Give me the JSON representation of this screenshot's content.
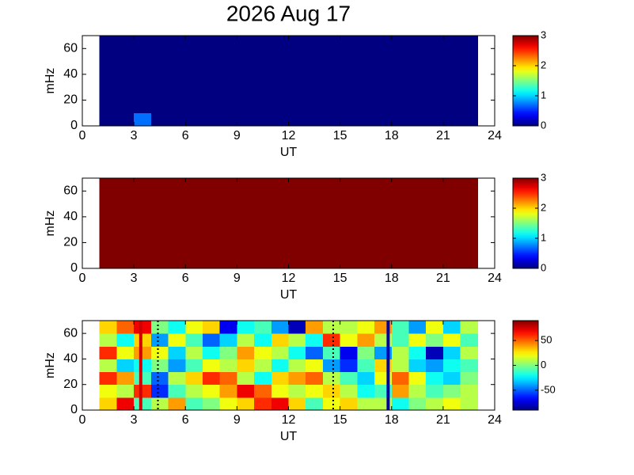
{
  "chart_data": [
    {
      "type": "heatmap",
      "title": "2026 Aug 17",
      "xlabel": "UT",
      "ylabel": "mHz",
      "xlim": [
        0,
        24
      ],
      "xticks": [
        0,
        3,
        6,
        9,
        12,
        15,
        18,
        21,
        24
      ],
      "ylim": [
        0,
        70
      ],
      "yticks": [
        0,
        20,
        40,
        60
      ],
      "x": [
        1.5,
        2.5,
        3.5,
        4.5,
        5.5,
        6.5,
        7.5,
        8.5,
        9.5,
        10.5,
        11.5,
        12.5,
        13.5,
        14.5,
        15.5,
        16.5,
        17.5,
        18.5,
        19.5,
        20.5,
        21.5,
        22.5
      ],
      "y": [
        5,
        15,
        25,
        35,
        45,
        55,
        65
      ],
      "z": [
        [
          0,
          0,
          0.7,
          0,
          0,
          0,
          0,
          0,
          0,
          0,
          0,
          0,
          0,
          0,
          0,
          0,
          0,
          0,
          0,
          0,
          0,
          0
        ],
        [
          0,
          0,
          0,
          0,
          0,
          0,
          0,
          0,
          0,
          0,
          0,
          0,
          0,
          0,
          0,
          0,
          0,
          0,
          0,
          0,
          0,
          0
        ],
        [
          0,
          0,
          0,
          0,
          0,
          0,
          0,
          0,
          0,
          0,
          0,
          0,
          0,
          0,
          0,
          0,
          0,
          0,
          0,
          0,
          0,
          0
        ],
        [
          0,
          0,
          0,
          0,
          0,
          0,
          0,
          0,
          0,
          0,
          0,
          0,
          0,
          0,
          0,
          0,
          0,
          0,
          0,
          0,
          0,
          0
        ],
        [
          0,
          0,
          0,
          0,
          0,
          0,
          0,
          0,
          0,
          0,
          0,
          0,
          0,
          0,
          0,
          0,
          0,
          0,
          0,
          0,
          0,
          0
        ],
        [
          0,
          0,
          0,
          0,
          0,
          0,
          0,
          0,
          0,
          0,
          0,
          0,
          0,
          0,
          0,
          0,
          0,
          0,
          0,
          0,
          0,
          0
        ],
        [
          0,
          0,
          0,
          0,
          0,
          0,
          0,
          0,
          0,
          0,
          0,
          0,
          0,
          0,
          0,
          0,
          0,
          0,
          0,
          0,
          0,
          0
        ]
      ],
      "clim": [
        0,
        3
      ],
      "cticks": [
        0,
        1,
        2,
        3
      ],
      "colormap": "jet"
    },
    {
      "type": "heatmap",
      "xlabel": "UT",
      "ylabel": "mHz",
      "xlim": [
        0,
        24
      ],
      "xticks": [
        0,
        3,
        6,
        9,
        12,
        15,
        18,
        21,
        24
      ],
      "ylim": [
        0,
        70
      ],
      "yticks": [
        0,
        20,
        40,
        60
      ],
      "x": [
        1.5,
        2.5,
        3.5,
        4.5,
        5.5,
        6.5,
        7.5,
        8.5,
        9.5,
        10.5,
        11.5,
        12.5,
        13.5,
        14.5,
        15.5,
        16.5,
        17.5,
        18.5,
        19.5,
        20.5,
        21.5,
        22.5
      ],
      "y": [
        5,
        15,
        25,
        35,
        45,
        55,
        65
      ],
      "z": [
        [
          3,
          3,
          3,
          3,
          3,
          3,
          3,
          3,
          3,
          3,
          3,
          3,
          3,
          3,
          3,
          3,
          3,
          3,
          3,
          3,
          3,
          3
        ],
        [
          3,
          3,
          3,
          3,
          3,
          3,
          3,
          3,
          3,
          3,
          3,
          3,
          3,
          3,
          3,
          3,
          3,
          3,
          3,
          3,
          3,
          3
        ],
        [
          3,
          3,
          3,
          3,
          3,
          3,
          3,
          3,
          3,
          3,
          3,
          3,
          3,
          3,
          3,
          3,
          3,
          3,
          3,
          3,
          3,
          3
        ],
        [
          3,
          3,
          3,
          3,
          3,
          3,
          3,
          3,
          3,
          3,
          3,
          3,
          3,
          3,
          3,
          3,
          3,
          3,
          3,
          3,
          3,
          3
        ],
        [
          3,
          3,
          3,
          3,
          3,
          3,
          3,
          3,
          3,
          3,
          3,
          3,
          3,
          3,
          3,
          3,
          3,
          3,
          3,
          3,
          3,
          3
        ],
        [
          3,
          3,
          3,
          3,
          3,
          3,
          3,
          3,
          3,
          3,
          3,
          3,
          3,
          3,
          3,
          3,
          3,
          3,
          3,
          3,
          3,
          3
        ],
        [
          3,
          3,
          3,
          3,
          3,
          3,
          3,
          3,
          3,
          3,
          3,
          3,
          3,
          3,
          3,
          3,
          3,
          3,
          3,
          3,
          3,
          3
        ]
      ],
      "clim": [
        0,
        3
      ],
      "cticks": [
        0,
        1,
        2,
        3
      ],
      "colormap": "jet"
    },
    {
      "type": "heatmap",
      "xlabel": "UT",
      "ylabel": "mHz",
      "xlim": [
        0,
        24
      ],
      "xticks": [
        0,
        3,
        6,
        9,
        12,
        15,
        18,
        21,
        24
      ],
      "ylim": [
        0,
        70
      ],
      "yticks": [
        0,
        20,
        40,
        60
      ],
      "x": [
        1.5,
        2.5,
        3.5,
        4.5,
        5.5,
        6.5,
        7.5,
        8.5,
        9.5,
        10.5,
        11.5,
        12.5,
        13.5,
        14.5,
        15.5,
        16.5,
        17.5,
        18.5,
        19.5,
        20.5,
        21.5,
        22.5
      ],
      "y": [
        5,
        15,
        25,
        35,
        45,
        55,
        65
      ],
      "z": [
        [
          30,
          70,
          -10,
          10,
          40,
          -10,
          0,
          20,
          30,
          60,
          70,
          30,
          -10,
          20,
          30,
          10,
          10,
          -20,
          0,
          10,
          20,
          10
        ],
        [
          20,
          10,
          60,
          -60,
          -10,
          10,
          20,
          40,
          70,
          50,
          20,
          10,
          20,
          30,
          10,
          -20,
          -10,
          40,
          10,
          -10,
          0,
          10
        ],
        [
          60,
          40,
          -10,
          -50,
          10,
          30,
          60,
          50,
          10,
          -20,
          30,
          40,
          50,
          10,
          -10,
          -30,
          20,
          50,
          20,
          -20,
          -30,
          0
        ],
        [
          10,
          -30,
          -20,
          0,
          -40,
          -10,
          20,
          10,
          30,
          10,
          -20,
          10,
          20,
          -40,
          -60,
          -10,
          30,
          10,
          -30,
          -40,
          -20,
          -10
        ],
        [
          60,
          20,
          40,
          20,
          -30,
          10,
          -20,
          0,
          40,
          20,
          10,
          -20,
          -50,
          -10,
          -70,
          0,
          -40,
          10,
          -20,
          -80,
          -30,
          10
        ],
        [
          10,
          -20,
          30,
          -40,
          20,
          -10,
          -50,
          -30,
          10,
          -20,
          30,
          10,
          -20,
          60,
          20,
          40,
          10,
          -10,
          20,
          0,
          20,
          -10
        ],
        [
          30,
          50,
          70,
          0,
          -20,
          20,
          30,
          -70,
          -20,
          -10,
          -40,
          -80,
          40,
          10,
          10,
          20,
          40,
          -10,
          -40,
          20,
          -30,
          10
        ]
      ],
      "clim": [
        -90,
        90
      ],
      "cticks": [
        -50,
        0,
        50
      ],
      "colormap": "jet",
      "vlines": [
        {
          "x": 3.4,
          "color": "#d00000",
          "style": "solid"
        },
        {
          "x": 4.4,
          "color": "#000000",
          "style": "dotted"
        },
        {
          "x": 14.6,
          "color": "#000000",
          "style": "dotted"
        },
        {
          "x": 17.8,
          "color": "#0000b0",
          "style": "solid"
        }
      ]
    }
  ]
}
